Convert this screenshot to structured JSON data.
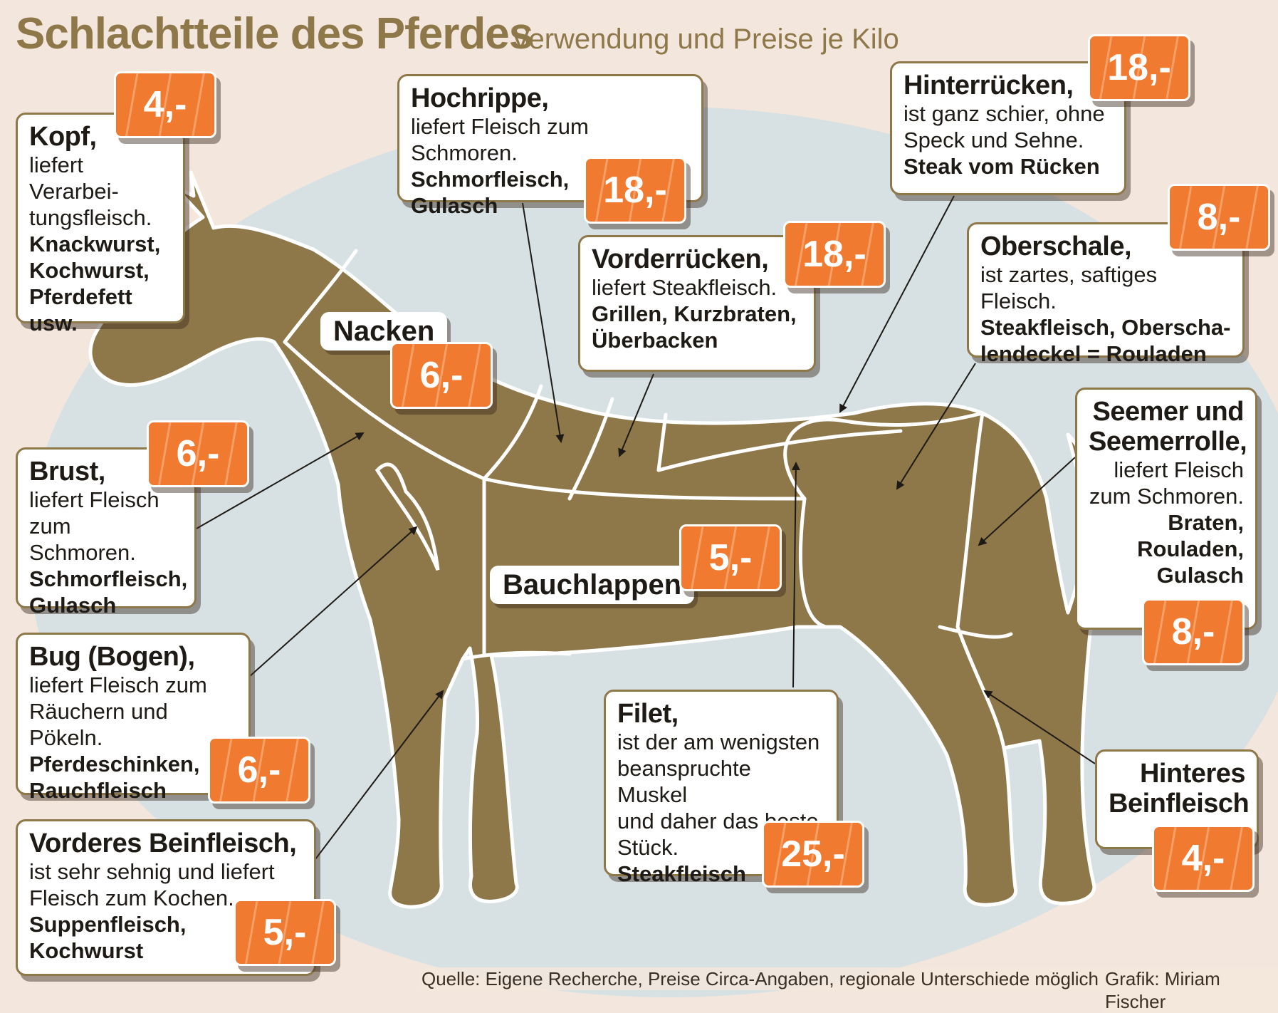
{
  "title": "Schlachtteile des Pferdes",
  "subtitle": "Verwendung und Preise je Kilo",
  "colors": {
    "horse": "#8e7748",
    "accent": "#f07a30",
    "background": "#f3e6dc",
    "ellipse": "#d7e1e3"
  },
  "parts": {
    "kopf": {
      "name": "Kopf,",
      "desc": "liefert Verarbei-\ntungsfleisch.",
      "use": "Knackwurst,\nKochwurst,\nPferdefett\nusw.",
      "price": "4,-"
    },
    "hochrippe": {
      "name": "Hochrippe,",
      "desc": "liefert Fleisch zum Schmoren.",
      "use": "Schmorfleisch,\nGulasch",
      "price": "18,-"
    },
    "hinterruecken": {
      "name": "Hinterrücken,",
      "desc": "ist ganz schier, ohne\nSpeck und Sehne.",
      "use": "Steak vom Rücken",
      "price": "18,-"
    },
    "vorderruecken": {
      "name": "Vorderrücken,",
      "desc": "liefert Steakfleisch.",
      "use": "Grillen, Kurzbraten,\nÜberbacken",
      "price": "18,-"
    },
    "oberschale": {
      "name": "Oberschale,",
      "desc": "ist zartes, saftiges Fleisch.",
      "use": "Steakfleisch, Oberscha-\nlendeckel = Rouladen",
      "price": "8,-"
    },
    "nacken": {
      "name": "Nacken",
      "price": "6,-"
    },
    "brust": {
      "name": "Brust,",
      "desc": "liefert Fleisch\nzum Schmoren.",
      "use": "Schmorfleisch,\nGulasch",
      "price": "6,-"
    },
    "seemer": {
      "name": "Seemer und\nSeemerrolle,",
      "desc": "liefert Fleisch\nzum Schmoren.",
      "use": "Braten,\nRouladen,\nGulasch",
      "price": "8,-"
    },
    "bauchlappen": {
      "name": "Bauchlappen",
      "price": "5,-"
    },
    "bug": {
      "name": "Bug (Bogen),",
      "desc": "liefert Fleisch zum\nRäuchern und Pökeln.",
      "use": "Pferdeschinken,\nRauchfleisch",
      "price": "6,-"
    },
    "filet": {
      "name": "Filet,",
      "desc": "ist der am wenigsten\nbeanspruchte Muskel\nund daher das beste\nStück.",
      "use": "Steakfleisch",
      "price": "25,-"
    },
    "hinteres_bein": {
      "name": "Hinteres\nBeinfleisch",
      "price": "4,-"
    },
    "vorderes_bein": {
      "name": "Vorderes Beinfleisch,",
      "desc": "ist sehr sehnig und liefert\nFleisch zum Kochen.",
      "use": "Suppenfleisch,\nKochwurst",
      "price": "5,-"
    }
  },
  "footer": {
    "source": "Quelle: Eigene Recherche, Preise Circa-Angaben, regionale Unterschiede möglich",
    "credit": "Grafik: Miriam Fischer"
  }
}
